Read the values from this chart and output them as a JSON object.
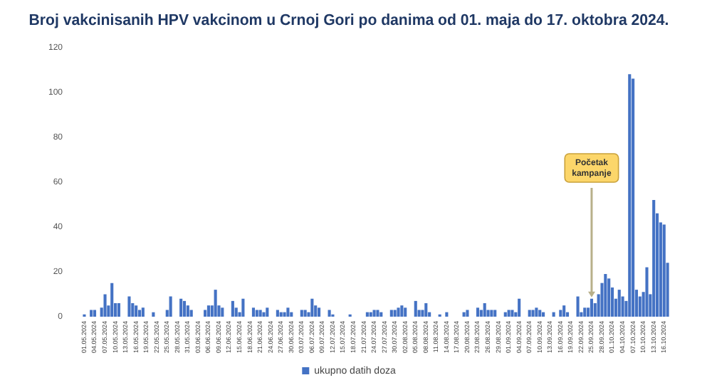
{
  "chart_data": {
    "type": "bar",
    "title": "Broj vakcinisanih HPV vakcinom u Crnoj Gori po danima od 01. maja do 17. oktobra 2024.",
    "categories": [
      "01.05.2024",
      null,
      null,
      "04.05.2024",
      null,
      null,
      "07.05.2024",
      null,
      null,
      "10.05.2024",
      null,
      null,
      "13.05.2024",
      null,
      null,
      "16.05.2024",
      null,
      null,
      "19.05.2024",
      null,
      null,
      "22.05.2024",
      null,
      null,
      "25.05.2024",
      null,
      null,
      "28.05.2024",
      null,
      null,
      "31.05.2024",
      null,
      null,
      "03.06.2024",
      null,
      null,
      "06.06.2024",
      null,
      null,
      "09.06.2024",
      null,
      null,
      "12.06.2024",
      null,
      null,
      "15.06.2024",
      null,
      null,
      "18.06.2024",
      null,
      null,
      "21.06.2024",
      null,
      null,
      "24.06.2024",
      null,
      null,
      "27.06.2024",
      null,
      null,
      "30.06.2024",
      null,
      null,
      "03.07.2024",
      null,
      null,
      "06.07.2024",
      null,
      null,
      "09.07.2024",
      null,
      null,
      "12.07.2024",
      null,
      null,
      "15.07.2024",
      null,
      null,
      "18.07.2024",
      null,
      null,
      "21.07.2024",
      null,
      null,
      "24.07.2024",
      null,
      null,
      "27.07.2024",
      null,
      null,
      "30.07.2024",
      null,
      null,
      "02.08.2024",
      null,
      null,
      "05.08.2024",
      null,
      null,
      "08.08.2024",
      null,
      null,
      "11.08.2024",
      null,
      null,
      "14.08.2024",
      null,
      null,
      "17.08.2024",
      null,
      null,
      "20.08.2024",
      null,
      null,
      "23.08.2024",
      null,
      null,
      "26.08.2024",
      null,
      null,
      "29.08.2024",
      null,
      null,
      "01.09.2024",
      null,
      null,
      "04.09.2024",
      null,
      null,
      "07.09.2024",
      null,
      null,
      "10.09.2024",
      null,
      null,
      "13.09.2024",
      null,
      null,
      "16.09.2024",
      null,
      null,
      "19.09.2024",
      null,
      null,
      "22.09.2024",
      null,
      null,
      "25.09.2024",
      null,
      null,
      "28.09.2024",
      null,
      null,
      "01.10.2024",
      null,
      null,
      "04.10.2024",
      null,
      null,
      "07.10.2024",
      null,
      null,
      "10.10.2024",
      null,
      null,
      "13.10.2024",
      null,
      null,
      "16.10.2024",
      null
    ],
    "series": [
      {
        "name": "ukupno datih doza",
        "color": "#4472c4",
        "values": [
          1,
          0,
          3,
          3,
          0,
          4,
          10,
          5,
          15,
          6,
          6,
          0,
          0,
          9,
          6,
          5,
          3,
          4,
          0,
          0,
          2,
          0,
          0,
          0,
          3,
          9,
          0,
          0,
          8,
          7,
          5,
          3,
          0,
          0,
          0,
          3,
          5,
          5,
          12,
          5,
          4,
          0,
          0,
          7,
          4,
          2,
          8,
          0,
          0,
          4,
          3,
          3,
          2,
          4,
          0,
          0,
          3,
          2,
          2,
          4,
          2,
          0,
          0,
          3,
          3,
          2,
          8,
          5,
          4,
          0,
          0,
          3,
          1,
          0,
          0,
          0,
          0,
          1,
          0,
          0,
          0,
          0,
          2,
          2,
          3,
          3,
          2,
          0,
          0,
          3,
          3,
          4,
          5,
          4,
          0,
          0,
          7,
          3,
          3,
          6,
          2,
          0,
          0,
          1,
          0,
          2,
          0,
          0,
          0,
          0,
          2,
          3,
          0,
          0,
          4,
          3,
          6,
          3,
          3,
          3,
          0,
          0,
          2,
          3,
          3,
          2,
          8,
          0,
          0,
          3,
          3,
          4,
          3,
          2,
          0,
          0,
          2,
          0,
          3,
          5,
          2,
          0,
          0,
          9,
          2,
          4,
          4,
          8,
          6,
          10,
          15,
          19,
          17,
          13,
          8,
          12,
          9,
          7,
          108,
          106,
          12,
          9,
          11,
          22,
          10,
          52,
          46,
          42,
          41,
          24
        ]
      }
    ],
    "ylim": [
      0,
      120
    ],
    "yticks": [
      0,
      20,
      40,
      60,
      80,
      100,
      120
    ],
    "grid": false,
    "legend": "bottom",
    "annotations": [
      {
        "text": "Početak kampanje",
        "x": "25.09.2024",
        "y": 8
      }
    ]
  }
}
